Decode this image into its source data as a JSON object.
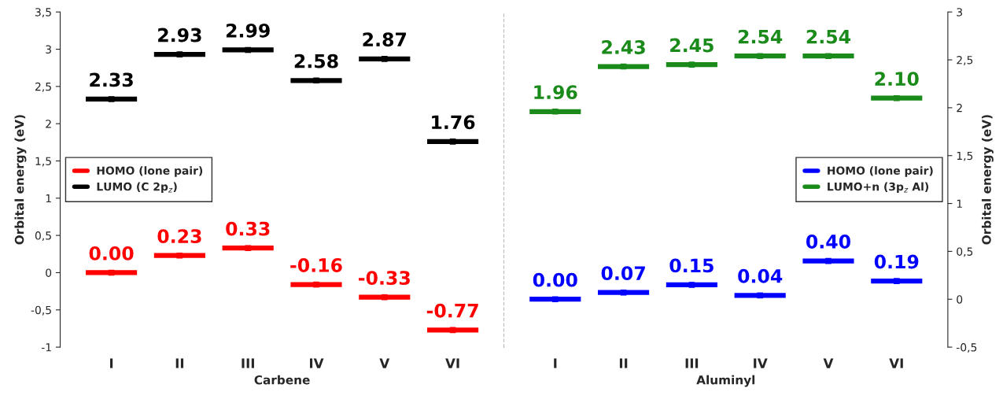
{
  "chart_data": [
    {
      "type": "scatter",
      "xlabel": "Carbene",
      "ylabel": "Orbital energy (eV)",
      "categories": [
        "I",
        "II",
        "III",
        "IV",
        "V",
        "VI"
      ],
      "ylim": [
        -1,
        3.5
      ],
      "yticks": [
        {
          "value": -1,
          "label": "-1"
        },
        {
          "value": -0.5,
          "label": "-0,5"
        },
        0,
        {
          "value": 0.5,
          "label": "0,5"
        },
        1,
        {
          "value": 1.5,
          "label": "1,5"
        },
        2,
        {
          "value": 2.5,
          "label": "2,5"
        },
        3,
        {
          "value": 3.5,
          "label": "3,5"
        }
      ],
      "legend": "center left",
      "series": [
        {
          "name": "HOMO (lone pair)",
          "color": "#ff0000",
          "values": [
            0.0,
            0.23,
            0.33,
            -0.16,
            -0.33,
            -0.77
          ],
          "value_labels": [
            "0.00",
            "0.23",
            "0.33",
            "-0.16",
            "-0.33",
            "-0.77"
          ]
        },
        {
          "name": "LUMO (C 2p$_{z}$)",
          "color": "#000000",
          "values": [
            2.33,
            2.93,
            2.99,
            2.58,
            2.87,
            1.76
          ],
          "value_labels": [
            "2.33",
            "2.93",
            "2.99",
            "2.58",
            "2.87",
            "1.76"
          ]
        }
      ]
    },
    {
      "type": "scatter",
      "xlabel": "Aluminyl",
      "y2label": "Orbital energy (eV)",
      "categories": [
        "I",
        "II",
        "III",
        "IV",
        "V",
        "VI"
      ],
      "y2lim": [
        -0.5,
        3
      ],
      "y2ticks": [
        {
          "value": -0.5,
          "label": "-0,5"
        },
        0,
        {
          "value": 0.5,
          "label": "0,5"
        },
        1,
        {
          "value": 1.5,
          "label": "1,5"
        },
        2,
        {
          "value": 2.5,
          "label": "2,5"
        },
        3
      ],
      "legend": "center right",
      "series": [
        {
          "name": "HOMO (lone pair)",
          "color": "#0000ff",
          "axis": "y2",
          "values": [
            0.0,
            0.07,
            0.15,
            0.04,
            0.4,
            0.19
          ],
          "value_labels": [
            "0.00",
            "0.07",
            "0.15",
            "0.04",
            "0.40",
            "0.19"
          ]
        },
        {
          "name": "LUMO+n (3p$_{z}$ Al)",
          "color": "#1a8a1a",
          "axis": "y2",
          "values": [
            1.96,
            2.43,
            2.45,
            2.54,
            2.54,
            2.1
          ],
          "value_labels": [
            "1.96",
            "2.43",
            "2.45",
            "2.54",
            "2.54",
            "2.10"
          ]
        }
      ]
    }
  ]
}
